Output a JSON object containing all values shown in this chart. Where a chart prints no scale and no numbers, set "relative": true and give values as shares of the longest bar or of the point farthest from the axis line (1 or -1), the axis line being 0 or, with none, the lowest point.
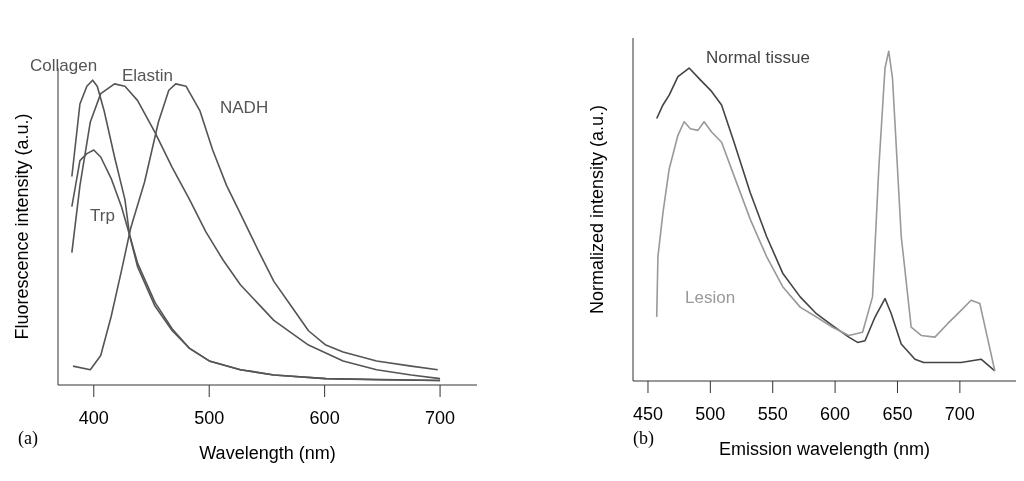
{
  "chart_data": [
    {
      "type": "line",
      "relative": true,
      "xlabel": "Wavelength (nm)",
      "ylabel": "Fluorescence intensity (a.u.)",
      "annotations": [
        "(a)"
      ],
      "xlim": [
        369,
        732
      ],
      "xticks": [
        400,
        500,
        600,
        700
      ],
      "grid": false,
      "legend": false,
      "marker": "none",
      "line_style": "solid",
      "series": [
        {
          "name": "Collagen",
          "color": "#555555",
          "x": [
            381,
            388,
            394,
            399,
            403,
            409,
            418,
            427,
            431,
            438,
            453,
            468,
            483,
            500,
            527,
            556,
            601,
            645,
            700
          ],
          "values": [
            0.684,
            0.922,
            0.98,
            1.0,
            0.98,
            0.899,
            0.748,
            0.608,
            0.492,
            0.387,
            0.259,
            0.178,
            0.12,
            0.079,
            0.05,
            0.033,
            0.021,
            0.017,
            0.015
          ]
        },
        {
          "name": "Elastin",
          "color": "#555555",
          "x": [
            381,
            388,
            397,
            406,
            418,
            427,
            438,
            453,
            468,
            483,
            497,
            512,
            527,
            556,
            586,
            616,
            645,
            675,
            700
          ],
          "values": [
            0.434,
            0.654,
            0.863,
            0.956,
            0.988,
            0.98,
            0.933,
            0.829,
            0.713,
            0.608,
            0.503,
            0.41,
            0.329,
            0.212,
            0.131,
            0.079,
            0.05,
            0.033,
            0.021
          ]
        },
        {
          "name": "NADH",
          "color": "#555555",
          "x": [
            382,
            397,
            406,
            415,
            424,
            432,
            444,
            456,
            465,
            471,
            480,
            492,
            503,
            515,
            527,
            542,
            556,
            571,
            586,
            601,
            616,
            645,
            675,
            698
          ],
          "values": [
            0.062,
            0.05,
            0.097,
            0.224,
            0.375,
            0.515,
            0.666,
            0.863,
            0.967,
            0.988,
            0.98,
            0.899,
            0.771,
            0.655,
            0.562,
            0.445,
            0.34,
            0.259,
            0.178,
            0.131,
            0.108,
            0.079,
            0.062,
            0.05
          ]
        },
        {
          "name": "Trp",
          "color": "#555555",
          "x": [
            381,
            388,
            394,
            400,
            406,
            415,
            424,
            431,
            438,
            453,
            468,
            483,
            500,
            527,
            556,
            601,
            700
          ],
          "values": [
            0.585,
            0.736,
            0.759,
            0.771,
            0.748,
            0.678,
            0.585,
            0.492,
            0.399,
            0.271,
            0.184,
            0.12,
            0.079,
            0.05,
            0.033,
            0.021,
            0.015
          ]
        }
      ]
    },
    {
      "type": "line",
      "relative": true,
      "xlabel": "Emission wavelength (nm)",
      "ylabel": "Normalized intensity (a.u.)",
      "annotations": [
        "(b)"
      ],
      "xlim": [
        438,
        745
      ],
      "xticks": [
        450,
        500,
        550,
        600,
        650,
        700
      ],
      "grid": false,
      "legend": false,
      "marker": "none",
      "line_style": "solid",
      "series": [
        {
          "name": "Normal tissue",
          "color": "#444444",
          "x": [
            457,
            462,
            467,
            474,
            483,
            492,
            501,
            509,
            519,
            532,
            545,
            558,
            572,
            585,
            598,
            611,
            618,
            624,
            632,
            640,
            645,
            653,
            664,
            671,
            701,
            717,
            728
          ],
          "values": [
            0.796,
            0.837,
            0.867,
            0.923,
            0.949,
            0.913,
            0.878,
            0.837,
            0.724,
            0.571,
            0.439,
            0.327,
            0.255,
            0.204,
            0.168,
            0.133,
            0.117,
            0.122,
            0.194,
            0.25,
            0.204,
            0.112,
            0.066,
            0.056,
            0.056,
            0.066,
            0.031
          ]
        },
        {
          "name": "Lesion",
          "color": "#999999",
          "x": [
            457,
            458,
            462,
            467,
            474,
            479,
            484,
            490,
            495,
            501,
            509,
            519,
            532,
            545,
            558,
            572,
            585,
            598,
            611,
            622,
            630,
            635,
            640,
            643,
            646,
            653,
            661,
            669,
            680,
            690,
            701,
            709,
            716,
            722,
            728
          ],
          "values": [
            0.194,
            0.378,
            0.51,
            0.643,
            0.745,
            0.786,
            0.765,
            0.76,
            0.786,
            0.755,
            0.724,
            0.622,
            0.49,
            0.378,
            0.286,
            0.224,
            0.194,
            0.163,
            0.138,
            0.148,
            0.255,
            0.643,
            0.949,
            1.0,
            0.918,
            0.439,
            0.163,
            0.138,
            0.133,
            0.173,
            0.214,
            0.245,
            0.235,
            0.133,
            0.031
          ]
        }
      ]
    }
  ]
}
